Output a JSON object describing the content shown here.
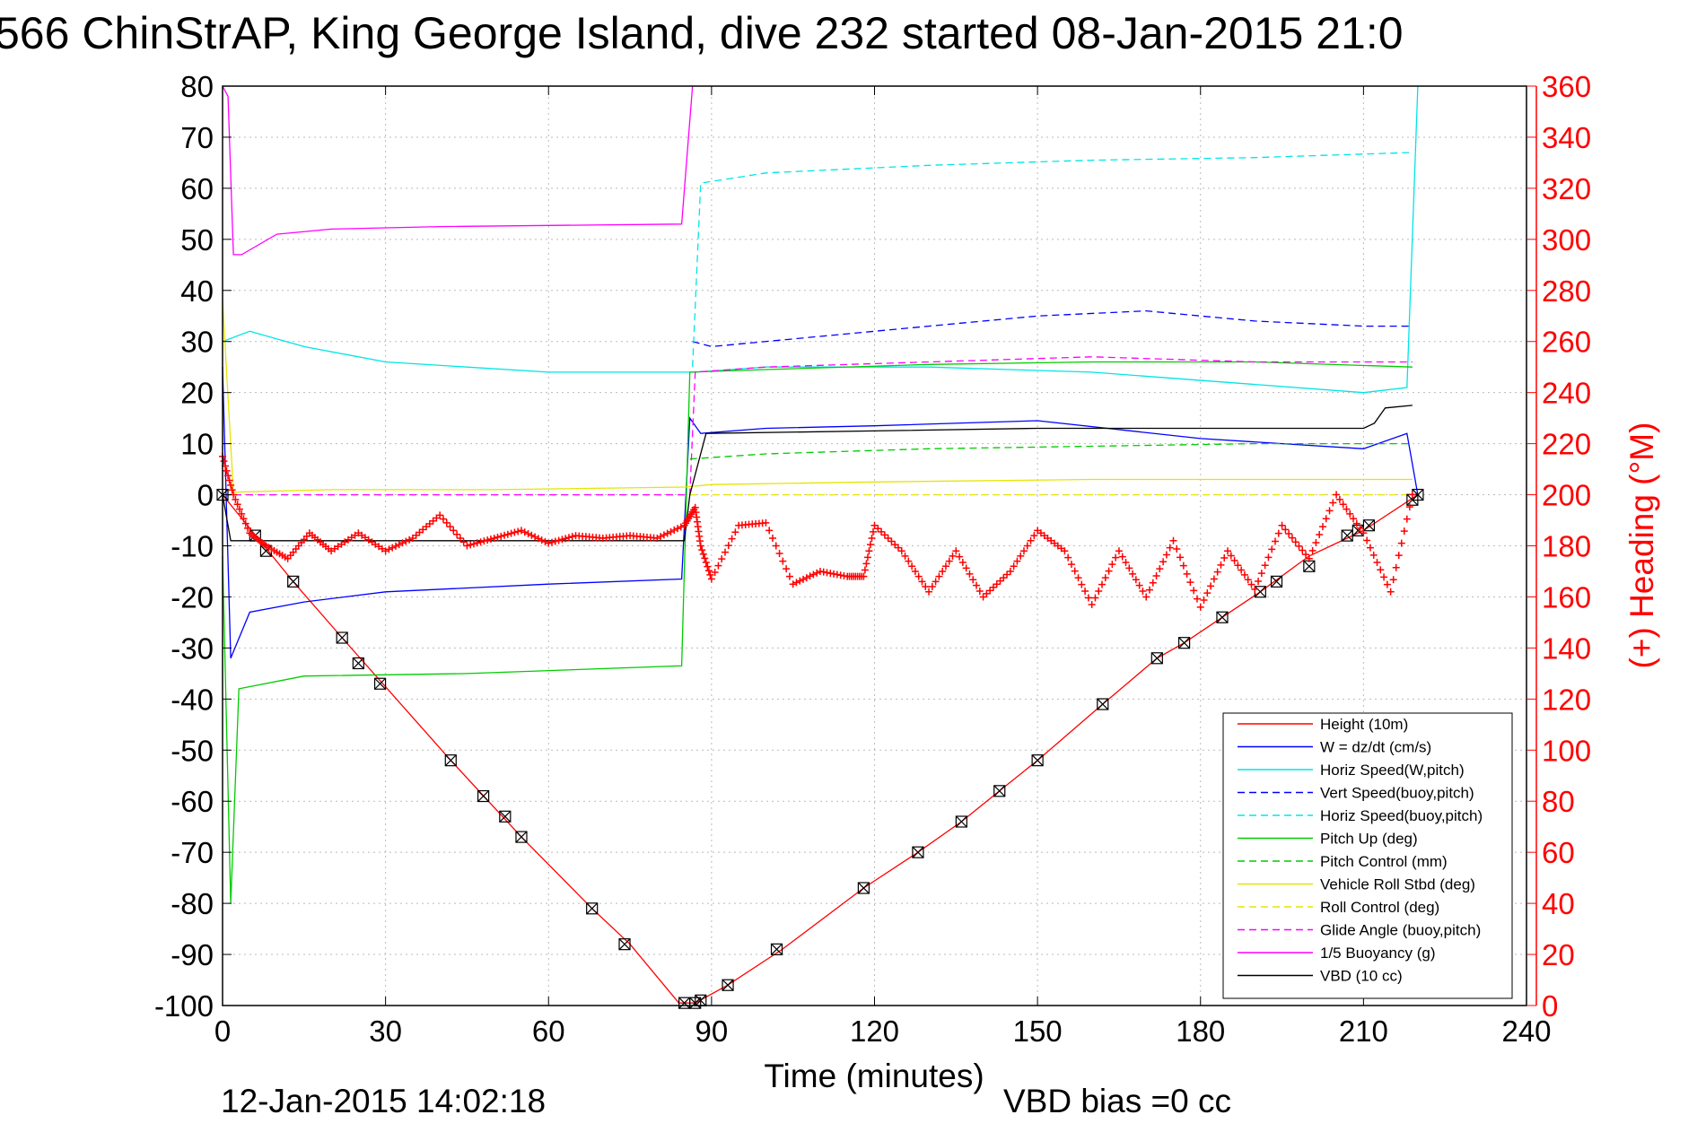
{
  "chart_data": {
    "type": "line",
    "title": "566 ChinStrAP, King George Island, dive 232 started 08-Jan-2015 21:0",
    "xlabel": "Time (minutes)",
    "ylabel": "",
    "y2label": "(+) Heading (°M)",
    "xlim": [
      0,
      240
    ],
    "ylim": [
      -100,
      80
    ],
    "y2lim": [
      0,
      360
    ],
    "x_ticks": [
      "0",
      "30",
      "60",
      "90",
      "120",
      "150",
      "180",
      "210",
      "240"
    ],
    "y_ticks": [
      "80",
      "70",
      "60",
      "50",
      "40",
      "30",
      "20",
      "10",
      "0",
      "-10",
      "-20",
      "-30",
      "-40",
      "-50",
      "-60",
      "-70",
      "-80",
      "-90",
      "-100"
    ],
    "y2_ticks": [
      "360",
      "340",
      "320",
      "300",
      "280",
      "260",
      "240",
      "220",
      "200",
      "180",
      "160",
      "140",
      "120",
      "100",
      "80",
      "60",
      "40",
      "20",
      "0"
    ],
    "grid": true,
    "legend_position": "bottom-right",
    "footer_date": "12-Jan-2015 14:02:18",
    "footer_bias": "VBD bias =0 cc",
    "series": [
      {
        "name": "Height (10m)",
        "color": "#ff0000",
        "style": "solid",
        "x": [
          0,
          13,
          22,
          42,
          55,
          68,
          75,
          84,
          87,
          93,
          103,
          118,
          128,
          136,
          143,
          150,
          162,
          172,
          177,
          184,
          191,
          200,
          210,
          220
        ],
        "y": [
          0,
          -17,
          -28,
          -52,
          -67,
          -81,
          -88,
          -99.5,
          -99.5,
          -96,
          -89,
          -77,
          -70,
          -64,
          -58,
          -52,
          -41,
          -32,
          -29,
          -24,
          -19,
          -12,
          -7,
          0
        ]
      },
      {
        "name": "W = dz/dt (cm/s)",
        "color": "#0000ff",
        "style": "solid",
        "x": [
          0,
          1.5,
          5,
          15,
          30,
          60,
          84.5,
          86,
          88,
          100,
          120,
          150,
          180,
          210,
          218,
          220
        ],
        "y": [
          25,
          -32,
          -23,
          -21,
          -19,
          -17.5,
          -16.5,
          15,
          12,
          13,
          13.5,
          14.5,
          11,
          9,
          12,
          0
        ]
      },
      {
        "name": "Horiz Speed(W,pitch)",
        "color": "#00e5e5",
        "style": "solid",
        "x": [
          0,
          5,
          15,
          30,
          60,
          84,
          87,
          100,
          130,
          160,
          185,
          210,
          218,
          220
        ],
        "y": [
          30,
          32,
          29,
          26,
          24,
          24,
          24,
          25,
          25,
          24,
          22,
          20,
          21,
          80
        ]
      },
      {
        "name": "Vert Speed(buoy,pitch)",
        "color": "#0000ff",
        "style": "dashed",
        "x": [
          86.5,
          90,
          110,
          130,
          150,
          170,
          190,
          210,
          219
        ],
        "y": [
          30,
          29,
          31,
          33,
          35,
          36,
          34,
          33,
          33
        ]
      },
      {
        "name": "Horiz Speed(buoy,pitch)",
        "color": "#00e5e5",
        "style": "dashed",
        "x": [
          86.5,
          88,
          100,
          130,
          160,
          190,
          219
        ],
        "y": [
          25,
          61,
          63,
          64.5,
          65.5,
          66,
          67
        ]
      },
      {
        "name": "Pitch Up (deg)",
        "color": "#00cc00",
        "style": "solid",
        "x": [
          0,
          1.5,
          3,
          15,
          45,
          84.5,
          86,
          100,
          130,
          160,
          190,
          219
        ],
        "y": [
          -12,
          -80,
          -38,
          -35.5,
          -35,
          -33.5,
          24,
          24.5,
          25.5,
          26,
          26,
          25
        ]
      },
      {
        "name": "Pitch Control (mm)",
        "color": "#00cc00",
        "style": "dashed",
        "x": [
          86,
          100,
          130,
          160,
          190,
          219
        ],
        "y": [
          7,
          8,
          9,
          9.5,
          10,
          10
        ]
      },
      {
        "name": "Vehicle Roll Stbd (deg)",
        "color": "#e5e500",
        "style": "solid",
        "x": [
          0,
          2,
          20,
          50,
          85,
          90,
          120,
          160,
          200,
          219
        ],
        "y": [
          38,
          0.5,
          1,
          1,
          1.5,
          2,
          2.5,
          3,
          3,
          3
        ]
      },
      {
        "name": "Roll Control (deg)",
        "color": "#e5e500",
        "style": "dashed",
        "x": [
          0,
          86,
          88,
          219
        ],
        "y": [
          0,
          0,
          0,
          0
        ]
      },
      {
        "name": "Glide Angle (buoy,pitch)",
        "color": "#ff00ff",
        "style": "dashed",
        "x": [
          0,
          86,
          87,
          100,
          130,
          160,
          190,
          219
        ],
        "y": [
          0,
          0,
          24,
          25,
          26,
          27,
          26,
          26
        ]
      },
      {
        "name": "1/5 Buoyancy (g)",
        "color": "#ff00ff",
        "style": "solid",
        "x": [
          0,
          1,
          2,
          3.5,
          10,
          20,
          40,
          84.5,
          86.5
        ],
        "y": [
          80,
          78,
          47,
          47,
          51,
          52,
          52.5,
          53,
          80
        ]
      },
      {
        "name": "VBD (10 cc)",
        "color": "#000000",
        "style": "solid",
        "x": [
          0,
          1.5,
          85,
          86,
          89,
          120,
          150,
          200,
          210,
          212,
          214,
          219
        ],
        "y": [
          0,
          -9,
          -9,
          0,
          12,
          12.5,
          13,
          13,
          13,
          14,
          17,
          17.5
        ]
      }
    ],
    "heading_series": {
      "name": "Heading",
      "color": "#ff0000",
      "marker": "+",
      "x": [
        0,
        2,
        5,
        8,
        12,
        16,
        20,
        25,
        30,
        35,
        40,
        45,
        50,
        55,
        60,
        65,
        70,
        75,
        80,
        85,
        87,
        88,
        90,
        95,
        100,
        105,
        110,
        115,
        118,
        120,
        125,
        130,
        135,
        140,
        145,
        150,
        155,
        160,
        165,
        170,
        175,
        180,
        185,
        190,
        195,
        200,
        205,
        210,
        215,
        219
      ],
      "y": [
        215,
        200,
        185,
        180,
        175,
        185,
        178,
        185,
        178,
        183,
        192,
        180,
        183,
        186,
        181,
        184,
        183,
        184,
        183,
        188,
        195,
        180,
        167,
        188,
        189,
        165,
        170,
        168,
        168,
        188,
        178,
        162,
        178,
        160,
        170,
        186,
        178,
        157,
        178,
        160,
        182,
        156,
        178,
        163,
        188,
        175,
        200,
        185,
        162,
        200
      ]
    },
    "markers_series": {
      "name": "Height markers",
      "color": "#000000",
      "marker": "square-x",
      "x": [
        0,
        6,
        8,
        13,
        22,
        25,
        29,
        42,
        48,
        52,
        55,
        68,
        74,
        85,
        87,
        88,
        93,
        102,
        118,
        128,
        136,
        143,
        150,
        162,
        172,
        177,
        184,
        191,
        194,
        200,
        207,
        209,
        211,
        219,
        220
      ],
      "y": [
        0,
        -8,
        -11,
        -17,
        -28,
        -33,
        -37,
        -52,
        -59,
        -63,
        -67,
        -81,
        -88,
        -99.5,
        -99.5,
        -99,
        -96,
        -89,
        -77,
        -70,
        -64,
        -58,
        -52,
        -41,
        -32,
        -29,
        -24,
        -19,
        -17,
        -14,
        -8,
        -7,
        -6,
        -1,
        0
      ]
    }
  }
}
